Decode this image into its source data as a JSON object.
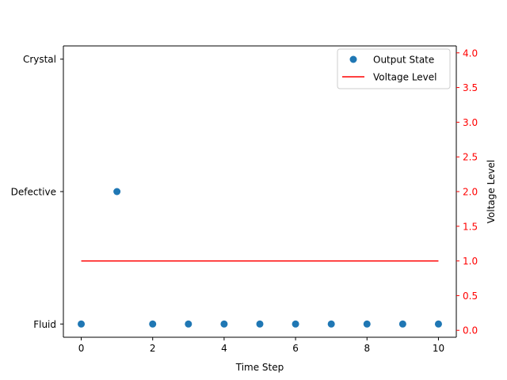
{
  "chart_data": {
    "type": "scatter+line",
    "xlabel": "Time Step",
    "ylabel_right": "Voltage Level",
    "x_ticks": [
      0,
      2,
      4,
      6,
      8,
      10
    ],
    "x_range": [
      -0.5,
      10.5
    ],
    "left_axis": {
      "categories": [
        "Fluid",
        "Defective",
        "Crystal"
      ],
      "range": [
        -0.1,
        2.1
      ]
    },
    "right_axis": {
      "ticks": [
        0.0,
        0.5,
        1.0,
        1.5,
        2.0,
        2.5,
        3.0,
        3.5,
        4.0
      ],
      "tick_labels": [
        "0.0",
        "0.5",
        "1.0",
        "1.5",
        "2.0",
        "2.5",
        "3.0",
        "3.5",
        "4.0"
      ],
      "range": [
        -0.1,
        4.1
      ],
      "color": "#ff0000"
    },
    "series": [
      {
        "name": "Output State",
        "kind": "scatter",
        "axis": "left",
        "color": "#1f77b4",
        "x": [
          0,
          1,
          2,
          3,
          4,
          5,
          6,
          7,
          8,
          9,
          10
        ],
        "y": [
          "Fluid",
          "Defective",
          "Fluid",
          "Fluid",
          "Fluid",
          "Fluid",
          "Fluid",
          "Fluid",
          "Fluid",
          "Fluid",
          "Fluid"
        ]
      },
      {
        "name": "Voltage Level",
        "kind": "line",
        "axis": "right",
        "color": "#ff0000",
        "x": [
          0,
          1,
          2,
          3,
          4,
          5,
          6,
          7,
          8,
          9,
          10
        ],
        "y": [
          1,
          1,
          1,
          1,
          1,
          1,
          1,
          1,
          1,
          1,
          1
        ]
      }
    ],
    "legend": {
      "placement": "upper-right"
    },
    "grid": false
  }
}
